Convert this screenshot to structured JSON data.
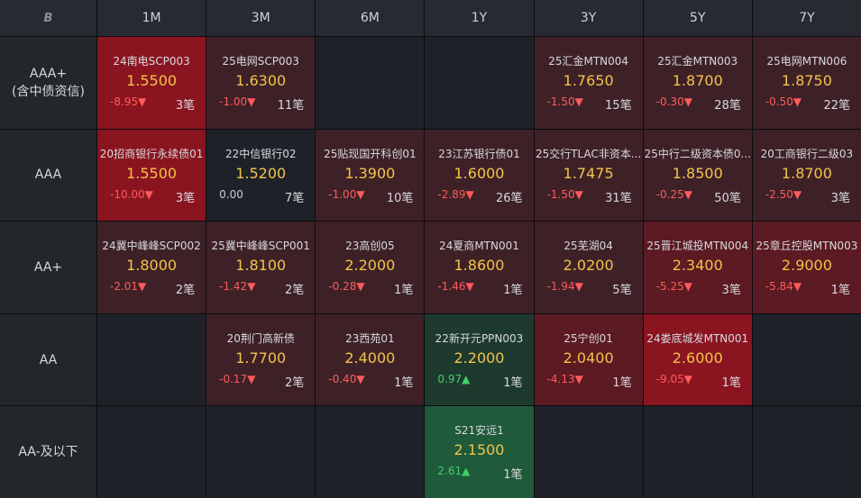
{
  "corner_label": "B",
  "colors": {
    "deep_red": "#8a1520",
    "mid_red": "#5c1a22",
    "light_red": "#3e2127",
    "neutral": "#1e2228",
    "green": "#1f5a3a",
    "dark_green": "#1e3a2e",
    "price": "#f2c34a",
    "down": "#ff5b5b",
    "up": "#3fd06a"
  },
  "columns": [
    "1M",
    "3M",
    "6M",
    "1Y",
    "3Y",
    "5Y",
    "7Y"
  ],
  "rows": [
    {
      "label": [
        "AAA+",
        "(含中债资信)"
      ],
      "cells": [
        {
          "name": "24南电SCP003",
          "price": "1.5500",
          "change": "-8.95▼",
          "dir": "down",
          "count": "3笔",
          "tone": "deep_red"
        },
        {
          "name": "25电网SCP003",
          "price": "1.6300",
          "change": "-1.00▼",
          "dir": "down",
          "count": "11笔",
          "tone": "light_red"
        },
        null,
        null,
        {
          "name": "25汇金MTN004",
          "price": "1.7650",
          "change": "-1.50▼",
          "dir": "down",
          "count": "15笔",
          "tone": "light_red"
        },
        {
          "name": "25汇金MTN003",
          "price": "1.8700",
          "change": "-0.30▼",
          "dir": "down",
          "count": "28笔",
          "tone": "light_red"
        },
        {
          "name": "25电网MTN006",
          "price": "1.8750",
          "change": "-0.50▼",
          "dir": "down",
          "count": "22笔",
          "tone": "light_red"
        }
      ]
    },
    {
      "label": [
        "AAA"
      ],
      "cells": [
        {
          "name": "20招商银行永续债01",
          "price": "1.5500",
          "change": "-10.00▼",
          "dir": "down",
          "count": "3笔",
          "tone": "deep_red"
        },
        {
          "name": "22中信银行02",
          "price": "1.5200",
          "change": "0.00",
          "dir": "flat",
          "count": "7笔",
          "tone": "neutral"
        },
        {
          "name": "25贴现国开科创01",
          "price": "1.3900",
          "change": "-1.00▼",
          "dir": "down",
          "count": "10笔",
          "tone": "light_red"
        },
        {
          "name": "23江苏银行债01",
          "price": "1.6000",
          "change": "-2.89▼",
          "dir": "down",
          "count": "26笔",
          "tone": "light_red"
        },
        {
          "name": "25交行TLAC非资本...",
          "price": "1.7475",
          "change": "-1.50▼",
          "dir": "down",
          "count": "31笔",
          "tone": "light_red"
        },
        {
          "name": "25中行二级资本债0...",
          "price": "1.8500",
          "change": "-0.25▼",
          "dir": "down",
          "count": "50笔",
          "tone": "light_red"
        },
        {
          "name": "20工商银行二级03",
          "price": "1.8700",
          "change": "-2.50▼",
          "dir": "down",
          "count": "3笔",
          "tone": "light_red"
        }
      ]
    },
    {
      "label": [
        "AA+"
      ],
      "cells": [
        {
          "name": "24冀中峰峰SCP002",
          "price": "1.8000",
          "change": "-2.01▼",
          "dir": "down",
          "count": "2笔",
          "tone": "light_red"
        },
        {
          "name": "25冀中峰峰SCP001",
          "price": "1.8100",
          "change": "-1.42▼",
          "dir": "down",
          "count": "2笔",
          "tone": "light_red"
        },
        {
          "name": "23高创05",
          "price": "2.2000",
          "change": "-0.28▼",
          "dir": "down",
          "count": "1笔",
          "tone": "light_red"
        },
        {
          "name": "24夏商MTN001",
          "price": "1.8600",
          "change": "-1.46▼",
          "dir": "down",
          "count": "1笔",
          "tone": "light_red"
        },
        {
          "name": "25芜湖04",
          "price": "2.0200",
          "change": "-1.94▼",
          "dir": "down",
          "count": "5笔",
          "tone": "light_red"
        },
        {
          "name": "25晋江城投MTN004",
          "price": "2.3400",
          "change": "-5.25▼",
          "dir": "down",
          "count": "3笔",
          "tone": "mid_red"
        },
        {
          "name": "25章丘控股MTN003",
          "price": "2.9000",
          "change": "-5.84▼",
          "dir": "down",
          "count": "1笔",
          "tone": "mid_red"
        }
      ]
    },
    {
      "label": [
        "AA"
      ],
      "cells": [
        null,
        {
          "name": "20荆门高新债",
          "price": "1.7700",
          "change": "-0.17▼",
          "dir": "down",
          "count": "2笔",
          "tone": "light_red"
        },
        {
          "name": "23西苑01",
          "price": "2.4000",
          "change": "-0.40▼",
          "dir": "down",
          "count": "1笔",
          "tone": "light_red"
        },
        {
          "name": "22新开元PPN003",
          "price": "2.2000",
          "change": "0.97▲",
          "dir": "up",
          "count": "1笔",
          "tone": "dark_green"
        },
        {
          "name": "25宁创01",
          "price": "2.0400",
          "change": "-4.13▼",
          "dir": "down",
          "count": "1笔",
          "tone": "mid_red"
        },
        {
          "name": "24娄底城发MTN001",
          "price": "2.6000",
          "change": "-9.05▼",
          "dir": "down",
          "count": "1笔",
          "tone": "deep_red"
        },
        null
      ]
    },
    {
      "label": [
        "AA-及以下"
      ],
      "cells": [
        null,
        null,
        null,
        {
          "name": "S21安远1",
          "price": "2.1500",
          "change": "2.61▲",
          "dir": "up",
          "count": "1笔",
          "tone": "green"
        },
        null,
        null,
        null
      ]
    }
  ]
}
